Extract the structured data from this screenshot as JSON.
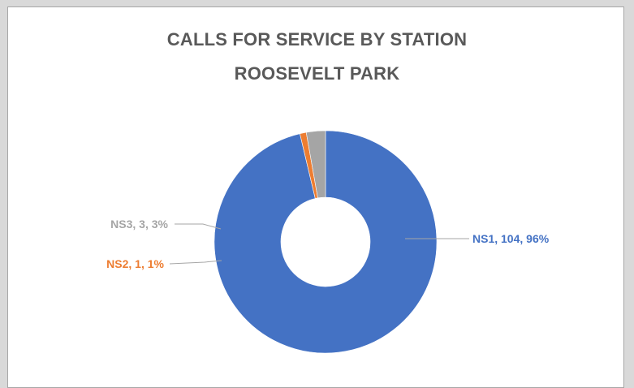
{
  "chart_data": {
    "type": "pie",
    "donut": true,
    "title": "CALLS FOR SERVICE BY STATION",
    "subtitle": "ROOSEVELT PARK",
    "slices": [
      {
        "name": "NS1",
        "value": 104,
        "percent": 96,
        "label": "NS1, 104, 96%",
        "color": "#4472c4"
      },
      {
        "name": "NS2",
        "value": 1,
        "percent": 1,
        "label": "NS2, 1, 1%",
        "color": "#ed7d31"
      },
      {
        "name": "NS3",
        "value": 3,
        "percent": 3,
        "label": "NS3, 3, 3%",
        "color": "#a5a5a5"
      }
    ],
    "legend": "none"
  },
  "colors": {
    "title": "#595959",
    "background": "#ffffff",
    "outer_background": "#d9d9d9"
  }
}
